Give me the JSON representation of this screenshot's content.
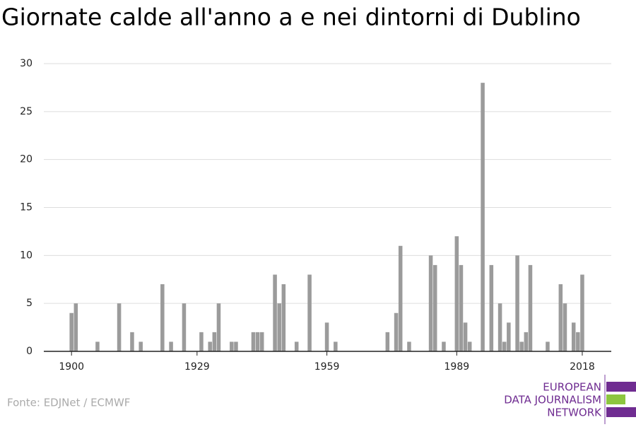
{
  "chart_data": {
    "type": "bar",
    "title": "Giornate calde all'anno a e nei dintorni di Dublino",
    "x": [
      1900,
      1901,
      1906,
      1911,
      1914,
      1916,
      1921,
      1923,
      1926,
      1930,
      1932,
      1933,
      1934,
      1937,
      1938,
      1942,
      1943,
      1944,
      1947,
      1948,
      1949,
      1952,
      1955,
      1959,
      1961,
      1973,
      1975,
      1976,
      1978,
      1983,
      1984,
      1986,
      1989,
      1990,
      1991,
      1992,
      1995,
      1997,
      1999,
      2000,
      2001,
      2003,
      2004,
      2005,
      2006,
      2010,
      2013,
      2014,
      2016,
      2017,
      2018
    ],
    "values": [
      4,
      5,
      1,
      5,
      2,
      1,
      7,
      1,
      5,
      2,
      1,
      2,
      5,
      1,
      1,
      2,
      2,
      2,
      8,
      5,
      7,
      1,
      8,
      3,
      1,
      2,
      4,
      11,
      1,
      10,
      9,
      1,
      12,
      9,
      3,
      1,
      28,
      9,
      5,
      1,
      3,
      10,
      1,
      2,
      9,
      1,
      7,
      5,
      3,
      2,
      8
    ],
    "color": "#9b9b9b",
    "xlim": [
      1893.6,
      2024.7
    ],
    "xticks": [
      1900,
      1929,
      1959,
      1989,
      2018
    ],
    "ylim": [
      0,
      30
    ],
    "yticks": [
      0,
      5,
      10,
      15,
      20,
      25,
      30
    ],
    "grid": true,
    "source": "Fonte: EDJNet / ECMWF",
    "logo": [
      "EUROPEAN",
      "DATA JOURNALISM",
      "NETWORK"
    ]
  }
}
